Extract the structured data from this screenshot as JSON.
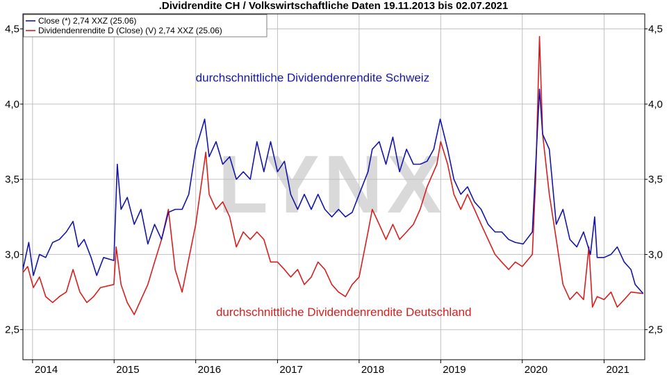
{
  "chart_data": {
    "type": "line",
    "title": ".Dividrendite CH / Volkswirtschaftliche Daten 19.11.2013 bis 02.07.2021",
    "xlabel": "",
    "ylabel": "",
    "x_ticks": [
      "2014",
      "2015",
      "2016",
      "2017",
      "2018",
      "2019",
      "2020",
      "2021"
    ],
    "x_range": [
      "2013-11-19",
      "2021-07-02"
    ],
    "ylim": [
      2.3,
      4.6
    ],
    "y_ticks": [
      "2,5",
      "3,0",
      "3,5",
      "4,0",
      "4,5"
    ],
    "grid": true,
    "legend_position": "top-left",
    "watermark": "LYNX",
    "colors": {
      "ch": "#1515a8",
      "de": "#d81e1e",
      "grid": "#c0c0c0"
    },
    "annotations": [
      {
        "text": "durchschnittliche Dividendenrendite Schweiz",
        "series": "ch"
      },
      {
        "text": "durchschnittliche Dividendenrendite Deutschland",
        "series": "de"
      }
    ],
    "series": [
      {
        "name": "Close (*) 2,74 XXZ (25.06)",
        "key": "ch",
        "data": [
          [
            "2013-11-19",
            2.9
          ],
          [
            "2013-12-15",
            3.08
          ],
          [
            "2014-01-05",
            2.86
          ],
          [
            "2014-02-01",
            3.0
          ],
          [
            "2014-03-01",
            2.98
          ],
          [
            "2014-04-01",
            3.08
          ],
          [
            "2014-05-01",
            3.1
          ],
          [
            "2014-06-01",
            3.15
          ],
          [
            "2014-07-01",
            3.22
          ],
          [
            "2014-07-25",
            3.05
          ],
          [
            "2014-08-20",
            3.1
          ],
          [
            "2014-09-20",
            2.98
          ],
          [
            "2014-10-15",
            2.86
          ],
          [
            "2014-11-15",
            2.98
          ],
          [
            "2014-12-31",
            2.96
          ],
          [
            "2015-01-15",
            3.6
          ],
          [
            "2015-02-01",
            3.3
          ],
          [
            "2015-03-01",
            3.38
          ],
          [
            "2015-04-01",
            3.2
          ],
          [
            "2015-05-01",
            3.3
          ],
          [
            "2015-06-01",
            3.07
          ],
          [
            "2015-07-01",
            3.2
          ],
          [
            "2015-08-01",
            3.1
          ],
          [
            "2015-09-01",
            3.28
          ],
          [
            "2015-10-01",
            3.3
          ],
          [
            "2015-11-01",
            3.3
          ],
          [
            "2015-12-01",
            3.4
          ],
          [
            "2016-01-01",
            3.7
          ],
          [
            "2016-02-10",
            3.9
          ],
          [
            "2016-03-01",
            3.65
          ],
          [
            "2016-04-01",
            3.75
          ],
          [
            "2016-05-01",
            3.6
          ],
          [
            "2016-06-01",
            3.65
          ],
          [
            "2016-07-01",
            3.5
          ],
          [
            "2016-08-01",
            3.55
          ],
          [
            "2016-09-01",
            3.5
          ],
          [
            "2016-10-01",
            3.75
          ],
          [
            "2016-11-01",
            3.55
          ],
          [
            "2016-12-01",
            3.75
          ],
          [
            "2017-01-01",
            3.55
          ],
          [
            "2017-02-01",
            3.62
          ],
          [
            "2017-03-01",
            3.4
          ],
          [
            "2017-04-01",
            3.3
          ],
          [
            "2017-05-01",
            3.4
          ],
          [
            "2017-06-01",
            3.3
          ],
          [
            "2017-07-01",
            3.4
          ],
          [
            "2017-08-01",
            3.3
          ],
          [
            "2017-09-01",
            3.25
          ],
          [
            "2017-10-01",
            3.3
          ],
          [
            "2017-11-01",
            3.25
          ],
          [
            "2017-12-01",
            3.28
          ],
          [
            "2018-01-01",
            3.4
          ],
          [
            "2018-02-10",
            3.55
          ],
          [
            "2018-03-01",
            3.7
          ],
          [
            "2018-04-01",
            3.75
          ],
          [
            "2018-05-01",
            3.6
          ],
          [
            "2018-06-01",
            3.78
          ],
          [
            "2018-07-01",
            3.55
          ],
          [
            "2018-08-01",
            3.7
          ],
          [
            "2018-09-01",
            3.6
          ],
          [
            "2018-10-01",
            3.6
          ],
          [
            "2018-11-01",
            3.62
          ],
          [
            "2018-12-01",
            3.7
          ],
          [
            "2018-12-30",
            3.9
          ],
          [
            "2019-02-01",
            3.7
          ],
          [
            "2019-03-01",
            3.5
          ],
          [
            "2019-04-01",
            3.4
          ],
          [
            "2019-05-01",
            3.45
          ],
          [
            "2019-06-01",
            3.35
          ],
          [
            "2019-07-01",
            3.3
          ],
          [
            "2019-08-01",
            3.2
          ],
          [
            "2019-09-01",
            3.15
          ],
          [
            "2019-10-01",
            3.15
          ],
          [
            "2019-11-01",
            3.1
          ],
          [
            "2019-12-01",
            3.08
          ],
          [
            "2020-01-05",
            3.07
          ],
          [
            "2020-02-15",
            3.15
          ],
          [
            "2020-03-18",
            4.1
          ],
          [
            "2020-04-01",
            3.8
          ],
          [
            "2020-05-01",
            3.7
          ],
          [
            "2020-06-01",
            3.2
          ],
          [
            "2020-07-01",
            3.3
          ],
          [
            "2020-08-01",
            3.1
          ],
          [
            "2020-09-01",
            3.05
          ],
          [
            "2020-10-01",
            3.15
          ],
          [
            "2020-11-01",
            3.0
          ],
          [
            "2020-11-20",
            3.25
          ],
          [
            "2020-12-01",
            2.98
          ],
          [
            "2021-01-01",
            2.98
          ],
          [
            "2021-02-01",
            3.0
          ],
          [
            "2021-03-01",
            3.05
          ],
          [
            "2021-04-01",
            2.95
          ],
          [
            "2021-05-01",
            2.9
          ],
          [
            "2021-05-20",
            2.8
          ],
          [
            "2021-06-25",
            2.74
          ]
        ]
      },
      {
        "name": "Dividendenrendite D (Close) (V) 2,74 XXZ (25.06)",
        "key": "de",
        "data": [
          [
            "2013-11-19",
            2.88
          ],
          [
            "2013-12-10",
            2.92
          ],
          [
            "2014-01-05",
            2.78
          ],
          [
            "2014-02-01",
            2.85
          ],
          [
            "2014-03-01",
            2.72
          ],
          [
            "2014-04-01",
            2.68
          ],
          [
            "2014-05-01",
            2.72
          ],
          [
            "2014-06-01",
            2.75
          ],
          [
            "2014-07-01",
            2.9
          ],
          [
            "2014-08-01",
            2.75
          ],
          [
            "2014-09-01",
            2.68
          ],
          [
            "2014-10-01",
            2.72
          ],
          [
            "2014-11-01",
            2.78
          ],
          [
            "2014-12-31",
            2.8
          ],
          [
            "2015-01-10",
            3.05
          ],
          [
            "2015-02-01",
            2.8
          ],
          [
            "2015-03-01",
            2.68
          ],
          [
            "2015-04-01",
            2.6
          ],
          [
            "2015-05-01",
            2.7
          ],
          [
            "2015-06-01",
            2.8
          ],
          [
            "2015-07-01",
            2.95
          ],
          [
            "2015-08-01",
            3.1
          ],
          [
            "2015-09-01",
            3.3
          ],
          [
            "2015-10-01",
            2.9
          ],
          [
            "2015-11-01",
            2.75
          ],
          [
            "2016-01-01",
            3.2
          ],
          [
            "2016-02-15",
            3.68
          ],
          [
            "2016-03-01",
            3.4
          ],
          [
            "2016-04-01",
            3.3
          ],
          [
            "2016-05-01",
            3.35
          ],
          [
            "2016-06-01",
            3.25
          ],
          [
            "2016-07-01",
            3.05
          ],
          [
            "2016-08-01",
            3.15
          ],
          [
            "2016-09-01",
            3.1
          ],
          [
            "2016-10-01",
            3.15
          ],
          [
            "2016-11-01",
            3.1
          ],
          [
            "2016-12-01",
            2.95
          ],
          [
            "2017-01-01",
            2.95
          ],
          [
            "2017-02-01",
            2.9
          ],
          [
            "2017-03-01",
            2.85
          ],
          [
            "2017-04-01",
            2.9
          ],
          [
            "2017-05-01",
            2.8
          ],
          [
            "2017-06-01",
            2.85
          ],
          [
            "2017-07-01",
            2.95
          ],
          [
            "2017-08-01",
            2.9
          ],
          [
            "2017-09-01",
            2.8
          ],
          [
            "2017-10-01",
            2.75
          ],
          [
            "2017-11-01",
            2.72
          ],
          [
            "2017-12-01",
            2.8
          ],
          [
            "2018-01-01",
            2.85
          ],
          [
            "2018-02-10",
            3.15
          ],
          [
            "2018-03-01",
            3.3
          ],
          [
            "2018-04-01",
            3.2
          ],
          [
            "2018-05-01",
            3.1
          ],
          [
            "2018-06-01",
            3.2
          ],
          [
            "2018-07-01",
            3.1
          ],
          [
            "2018-08-01",
            3.15
          ],
          [
            "2018-09-01",
            3.2
          ],
          [
            "2018-10-01",
            3.3
          ],
          [
            "2018-11-01",
            3.45
          ],
          [
            "2018-12-15",
            3.6
          ],
          [
            "2019-01-01",
            3.75
          ],
          [
            "2019-02-01",
            3.6
          ],
          [
            "2019-03-01",
            3.4
          ],
          [
            "2019-04-01",
            3.3
          ],
          [
            "2019-05-01",
            3.4
          ],
          [
            "2019-06-01",
            3.3
          ],
          [
            "2019-07-01",
            3.2
          ],
          [
            "2019-08-01",
            3.1
          ],
          [
            "2019-09-01",
            3.0
          ],
          [
            "2019-10-01",
            2.95
          ],
          [
            "2019-11-01",
            2.9
          ],
          [
            "2019-12-01",
            2.95
          ],
          [
            "2020-01-01",
            2.92
          ],
          [
            "2020-02-15",
            3.0
          ],
          [
            "2020-03-01",
            3.5
          ],
          [
            "2020-03-18",
            4.45
          ],
          [
            "2020-04-01",
            3.8
          ],
          [
            "2020-05-01",
            3.4
          ],
          [
            "2020-06-01",
            3.1
          ],
          [
            "2020-07-01",
            2.8
          ],
          [
            "2020-08-01",
            2.7
          ],
          [
            "2020-09-01",
            2.75
          ],
          [
            "2020-10-01",
            2.7
          ],
          [
            "2020-10-25",
            3.05
          ],
          [
            "2020-11-10",
            2.65
          ],
          [
            "2020-12-01",
            2.72
          ],
          [
            "2021-01-01",
            2.7
          ],
          [
            "2021-02-01",
            2.75
          ],
          [
            "2021-03-01",
            2.65
          ],
          [
            "2021-04-01",
            2.7
          ],
          [
            "2021-05-01",
            2.75
          ],
          [
            "2021-06-25",
            2.74
          ]
        ]
      }
    ]
  }
}
